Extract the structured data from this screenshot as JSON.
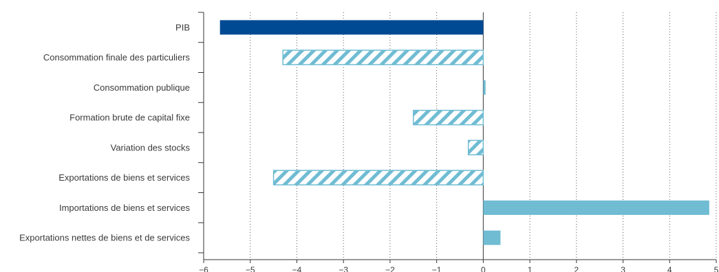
{
  "chart_data": {
    "type": "bar",
    "orientation": "horizontal",
    "categories": [
      "PIB",
      "Consommation finale des particuliers",
      "Consommation publique",
      "Formation brute de capital fixe",
      "Variation des stocks",
      "Exportations de biens et services",
      "Importations de biens et services",
      "Exportations nettes de biens et de services"
    ],
    "values": [
      -5.65,
      -4.3,
      0.05,
      -1.5,
      -0.32,
      -4.5,
      4.85,
      0.37
    ],
    "styles": [
      "solid-dark",
      "hatched",
      "solid-light",
      "hatched",
      "hatched",
      "hatched",
      "solid-light",
      "solid-light"
    ],
    "xlim": [
      -6,
      5
    ],
    "xticks": [
      "−6",
      "−5",
      "−4",
      "−3",
      "−2",
      "−1",
      "0",
      "1",
      "2",
      "3",
      "4",
      "5"
    ],
    "grid": "vertical-dotted",
    "colors": {
      "dark": "#004a94",
      "light": "#6fbcd3",
      "grid": "#555555",
      "axis": "#333333"
    }
  }
}
